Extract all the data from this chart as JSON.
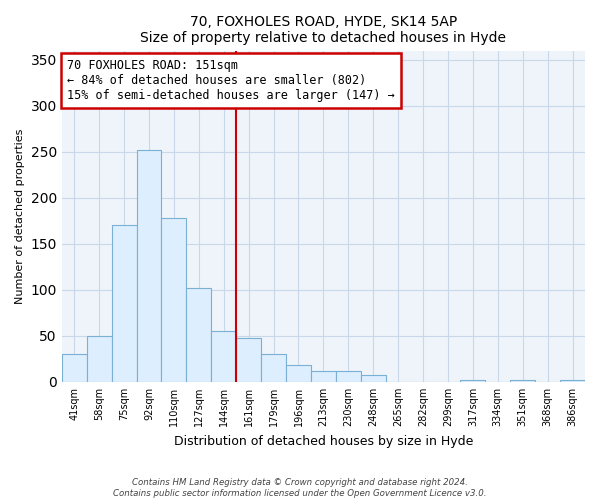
{
  "title": "70, FOXHOLES ROAD, HYDE, SK14 5AP",
  "subtitle": "Size of property relative to detached houses in Hyde",
  "xlabel": "Distribution of detached houses by size in Hyde",
  "ylabel": "Number of detached properties",
  "bar_labels": [
    "41sqm",
    "58sqm",
    "75sqm",
    "92sqm",
    "110sqm",
    "127sqm",
    "144sqm",
    "161sqm",
    "179sqm",
    "196sqm",
    "213sqm",
    "230sqm",
    "248sqm",
    "265sqm",
    "282sqm",
    "299sqm",
    "317sqm",
    "334sqm",
    "351sqm",
    "368sqm",
    "386sqm"
  ],
  "bar_values": [
    30,
    50,
    170,
    252,
    178,
    102,
    55,
    48,
    30,
    18,
    12,
    12,
    8,
    0,
    0,
    0,
    2,
    0,
    2,
    0,
    2
  ],
  "bar_color": "#ddeeff",
  "bar_edge_color": "#7ab0d4",
  "vline_index": 7,
  "vline_color": "#cc0000",
  "ylim": [
    0,
    360
  ],
  "yticks": [
    0,
    50,
    100,
    150,
    200,
    250,
    300,
    350
  ],
  "annotation_text": "70 FOXHOLES ROAD: 151sqm\n← 84% of detached houses are smaller (802)\n15% of semi-detached houses are larger (147) →",
  "annotation_box_color": "#ffffff",
  "annotation_box_edge": "#cc0000",
  "footer_text": "Contains HM Land Registry data © Crown copyright and database right 2024.\nContains public sector information licensed under the Open Government Licence v3.0.",
  "background_color": "#ffffff",
  "grid_color": "#c8d8e8",
  "axes_bg": "#eef4fa"
}
